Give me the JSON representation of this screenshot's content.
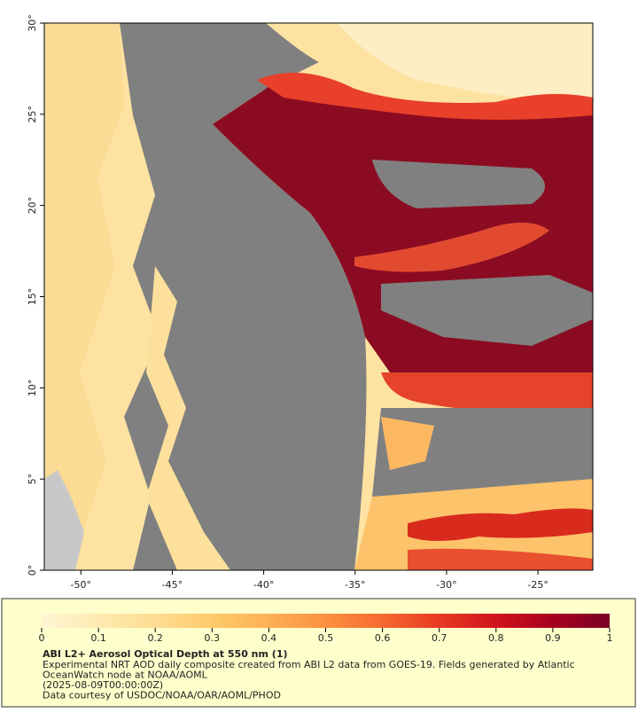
{
  "map": {
    "xlim": [
      -52,
      -22
    ],
    "ylim": [
      0,
      30
    ],
    "xticks": [
      {
        "value": -50,
        "label": "-50°"
      },
      {
        "value": -45,
        "label": "-45°"
      },
      {
        "value": -40,
        "label": "-40°"
      },
      {
        "value": -35,
        "label": "-35°"
      },
      {
        "value": -30,
        "label": "-30°"
      },
      {
        "value": -25,
        "label": "-25°"
      }
    ],
    "yticks": [
      {
        "value": 0,
        "label": "0°"
      },
      {
        "value": 5,
        "label": "5°"
      },
      {
        "value": 10,
        "label": "10°"
      },
      {
        "value": 15,
        "label": "15°"
      },
      {
        "value": 20,
        "label": "20°"
      },
      {
        "value": 25,
        "label": "25°"
      },
      {
        "value": 30,
        "label": "30°"
      }
    ]
  },
  "colorbar": {
    "lim": [
      0,
      1
    ],
    "ticks": [
      0,
      0.1,
      0.2,
      0.3,
      0.4,
      0.5,
      0.6,
      0.7,
      0.8,
      0.9,
      1
    ],
    "colors": [
      "#fff6d5",
      "#feeab0",
      "#fedd92",
      "#fdc96a",
      "#fdb054",
      "#fc9040",
      "#f66a30",
      "#e83a22",
      "#d0141c",
      "#a8001f",
      "#7a0024"
    ]
  },
  "caption": {
    "title": "ABI L2+ Aerosol Optical Depth at 550 nm (1)",
    "lines": [
      "Experimental NRT AOD daily composite created from ABI L2 data from GOES-19. Fields generated by Atlantic",
      "OceanWatch node at NOAA/AOML",
      "(2025-08-09T00:00:00Z)",
      "Data courtesy of USDOC/NOAA/OAR/AOML/PHOD"
    ]
  }
}
